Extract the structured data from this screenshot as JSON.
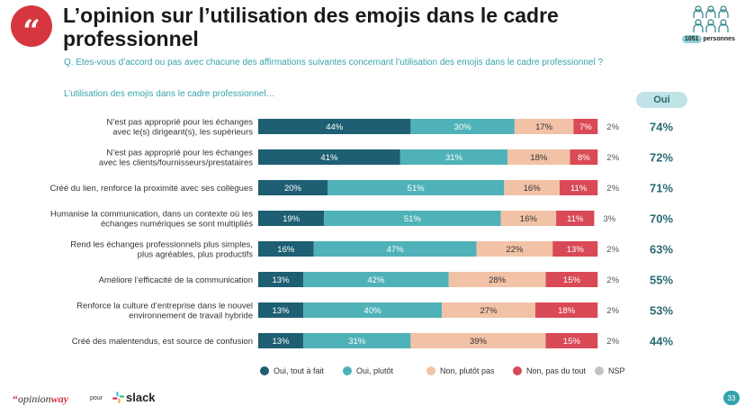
{
  "header": {
    "logo_glyph": "“",
    "title": "L’opinion sur l’utilisation des emojis dans le cadre professionnel",
    "sample_count": "1051",
    "sample_label": "personnes",
    "people_icon": "people-group-icon"
  },
  "question": "Q. Etes-vous d’accord ou pas avec chacune des affirmations suivantes concernant l’utilisation des emojis dans le cadre professionnel ?",
  "subquestion": "L’utilisation des emojis dans le cadre professionnel…",
  "oui_header": "Oui",
  "chart_data": {
    "type": "bar",
    "orientation": "horizontal-stacked-100",
    "categories": [
      [
        "N’est pas approprié pour les échanges",
        "avec le(s) dirigeant(s), les supérieurs"
      ],
      [
        "N’est pas approprié pour les échanges",
        "avec les clients/fournisseurs/prestataires"
      ],
      [
        "Créé du lien, renforce la proximité avec ses collègues"
      ],
      [
        "Humanise la communication, dans un contexte où les",
        "échanges numériques se sont multipliés"
      ],
      [
        "Rend les échanges professionnels plus simples,",
        "plus agréables, plus productifs"
      ],
      [
        "Améliore l’efficacité de la communication"
      ],
      [
        "Renforce la culture d’entreprise dans le nouvel",
        "environnement de travail hybride"
      ],
      [
        "Créé des malentendus, est source de confusion"
      ]
    ],
    "series": [
      {
        "name": "Oui, tout à fait",
        "color": "#1e5f74",
        "values": [
          44,
          41,
          20,
          19,
          16,
          13,
          13,
          13
        ]
      },
      {
        "name": "Oui, plutôt",
        "color": "#4fb2b8",
        "values": [
          30,
          31,
          51,
          51,
          47,
          42,
          40,
          31
        ]
      },
      {
        "name": "Non, plutôt pas",
        "color": "#f2c2a6",
        "values": [
          17,
          18,
          16,
          16,
          22,
          28,
          27,
          39
        ]
      },
      {
        "name": "Non, pas du tout",
        "color": "#d94a56",
        "values": [
          7,
          8,
          11,
          11,
          13,
          15,
          18,
          15
        ]
      },
      {
        "name": "NSP",
        "color": "#c4c4c4",
        "values": [
          2,
          2,
          2,
          3,
          2,
          2,
          2,
          2
        ]
      }
    ],
    "oui_totals": [
      74,
      72,
      71,
      70,
      63,
      55,
      53,
      44
    ],
    "value_suffix": "%",
    "legend_position": "bottom"
  },
  "footer": {
    "brand_quote": "“",
    "brand_opinion": "opinion",
    "brand_way": "way",
    "pour": "pour",
    "slack": "slack",
    "page_number": "33"
  }
}
